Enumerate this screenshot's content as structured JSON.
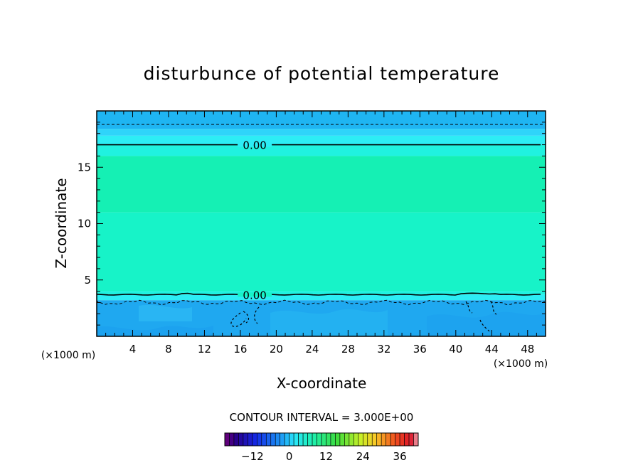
{
  "chart_data": {
    "type": "heatmap",
    "title": "disturbunce of potential temperature",
    "xlabel": "X-coordinate",
    "ylabel": "Z-coordinate",
    "x_unit": "(×1000 m)",
    "y_unit": "(×1000 m)",
    "xlim": [
      0,
      50
    ],
    "ylim": [
      0,
      20
    ],
    "x_ticks": [
      4,
      8,
      12,
      16,
      20,
      24,
      28,
      32,
      36,
      40,
      44,
      48
    ],
    "y_ticks": [
      5,
      10,
      15
    ],
    "contour_interval_text": "CONTOUR INTERVAL = 3.000E+00",
    "contour_labels": [
      {
        "text": "0.00",
        "x": 17.6,
        "z": 17.0
      },
      {
        "text": "0.00",
        "x": 17.6,
        "z": 3.7
      }
    ],
    "bands": [
      {
        "z": [
          18.4,
          20.0
        ],
        "color": "#1fb5f2"
      },
      {
        "z": [
          17.8,
          18.4
        ],
        "color": "#2fd4fa"
      },
      {
        "z": [
          17.0,
          17.8
        ],
        "color": "#2dedf5"
      },
      {
        "z": [
          16.0,
          17.0
        ],
        "color": "#20f2e0"
      },
      {
        "z": [
          11.0,
          16.0
        ],
        "color": "#15f0b4"
      },
      {
        "z": [
          4.0,
          11.0
        ],
        "color": "#17f3c8"
      },
      {
        "z": [
          3.7,
          4.0
        ],
        "color": "#20f2e0"
      },
      {
        "z": [
          3.2,
          3.7
        ],
        "color": "#2dedf5"
      },
      {
        "z": [
          0.0,
          3.2
        ],
        "color": "#1fa8f0"
      }
    ],
    "zero_contours": [
      {
        "z": 17.0
      },
      {
        "z": 3.7
      }
    ],
    "dashed_contours": [
      {
        "z": 18.8
      },
      {
        "z": 3.0
      }
    ],
    "colorbar": {
      "ticks": [
        -12,
        0,
        12,
        24,
        36
      ],
      "range": [
        -21,
        42
      ],
      "step": 1.5
    }
  }
}
